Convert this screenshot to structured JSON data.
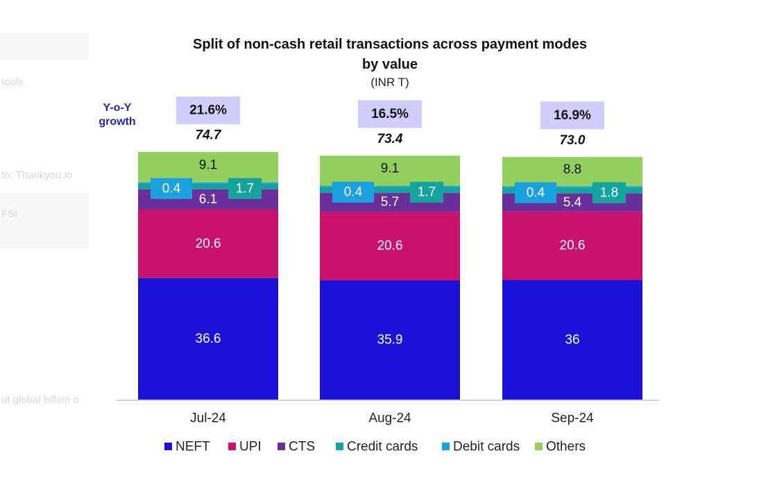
{
  "background_fragments": [
    "tools",
    "to: Thankyou.io",
    "FSI",
    "ut global billion o"
  ],
  "chart_data": {
    "type": "bar",
    "stacked": true,
    "title": "Split of non-cash retail transactions across payment modes",
    "title_line2": "by value",
    "subtitle": "(INR T)",
    "growth_label_line1": "Y-o-Y",
    "growth_label_line2": "growth",
    "categories": [
      "Jul-24",
      "Aug-24",
      "Sep-24"
    ],
    "growth": [
      "21.6%",
      "16.5%",
      "16.9%"
    ],
    "totals": [
      "74.7",
      "73.4",
      "73.0"
    ],
    "series": [
      {
        "name": "NEFT",
        "color": "#1a12d6",
        "values": [
          36.6,
          35.9,
          36.0
        ]
      },
      {
        "name": "UPI",
        "color": "#c8126e",
        "values": [
          20.6,
          20.6,
          20.6
        ]
      },
      {
        "name": "CTS",
        "color": "#6a2f9a",
        "values": [
          6.1,
          5.7,
          5.4
        ]
      },
      {
        "name": "Credit cards",
        "color": "#14a39e",
        "values": [
          1.7,
          1.7,
          1.8
        ]
      },
      {
        "name": "Debit cards",
        "color": "#1aa1e0",
        "values": [
          0.4,
          0.4,
          0.4
        ]
      },
      {
        "name": "Others",
        "color": "#92cf5c",
        "values": [
          9.1,
          9.1,
          8.8
        ]
      }
    ],
    "grid": false,
    "legend_position": "bottom",
    "growth_box_color": "#cfcdfa",
    "growth_label_color": "#2525b8"
  }
}
